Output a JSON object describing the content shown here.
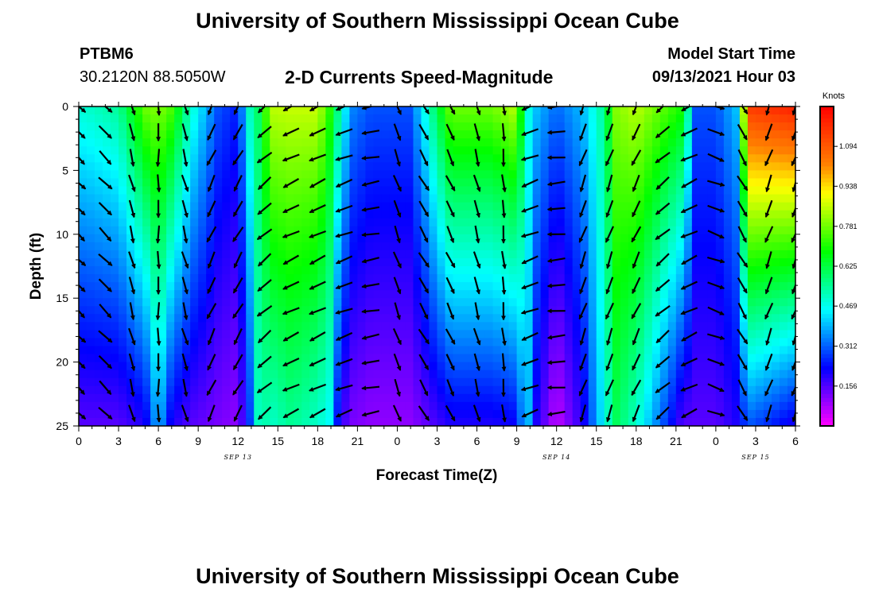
{
  "header": {
    "title": "University of Southern Mississippi Ocean Cube",
    "station": "PTBM6",
    "coords": "30.2120N  88.5050W",
    "subtitle": "2-D Currents Speed-Magnitude",
    "model_start_label": "Model Start Time",
    "model_start_value": "09/13/2021 Hour 03"
  },
  "footer": {
    "title": "University of Southern Mississippi Ocean Cube"
  },
  "chart_data": {
    "type": "heatmap",
    "xlabel": "Forecast Time(Z)",
    "ylabel": "Depth (ft)",
    "x_ticks": [
      {
        "hour": 0,
        "label": "0"
      },
      {
        "hour": 3,
        "label": "3"
      },
      {
        "hour": 6,
        "label": "6"
      },
      {
        "hour": 9,
        "label": "9"
      },
      {
        "hour": 12,
        "label": "12"
      },
      {
        "hour": 15,
        "label": "15"
      },
      {
        "hour": 18,
        "label": "18"
      },
      {
        "hour": 21,
        "label": "21"
      },
      {
        "hour": 24,
        "label": "0"
      },
      {
        "hour": 27,
        "label": "3"
      },
      {
        "hour": 30,
        "label": "6"
      },
      {
        "hour": 33,
        "label": "9"
      },
      {
        "hour": 36,
        "label": "12"
      },
      {
        "hour": 39,
        "label": "15"
      },
      {
        "hour": 42,
        "label": "18"
      },
      {
        "hour": 45,
        "label": "21"
      },
      {
        "hour": 48,
        "label": "0"
      },
      {
        "hour": 51,
        "label": "3"
      },
      {
        "hour": 54,
        "label": "6"
      }
    ],
    "date_labels": [
      {
        "hour": 12,
        "label": "SEP 13"
      },
      {
        "hour": 36,
        "label": "SEP 14"
      },
      {
        "hour": 51,
        "label": "SEP 15"
      }
    ],
    "y_ticks": [
      0,
      5,
      10,
      15,
      20,
      25
    ],
    "xlim": [
      0,
      54
    ],
    "ylim": [
      25,
      0
    ],
    "colorbar": {
      "unit": "Knots",
      "range": [
        0,
        1.25
      ],
      "ticks": [
        "0.156",
        "0.312",
        "0.469",
        "0.625",
        "0.781",
        "0.938",
        "1.094"
      ],
      "colors": [
        "#ff00ff",
        "#8000ff",
        "#0000ff",
        "#0080ff",
        "#00ffff",
        "#00ff80",
        "#00ff00",
        "#80ff00",
        "#ffff00",
        "#ff8000",
        "#ff4000",
        "#ff0000"
      ]
    },
    "speed_profile": {
      "hours": [
        0,
        0.5,
        3,
        5,
        6,
        7,
        8.5,
        10.5,
        12,
        13,
        13.6,
        14.5,
        16,
        18,
        19,
        19.6,
        20.5,
        22,
        25,
        28,
        31,
        33,
        33.7,
        34.5,
        36,
        38,
        39.5,
        40.5,
        42,
        45.5,
        46.5,
        48,
        49.5,
        50.5,
        54
      ],
      "surface": [
        0.5,
        0.5,
        0.55,
        0.78,
        0.8,
        0.75,
        0.5,
        0.3,
        0.25,
        0.55,
        0.6,
        0.85,
        0.86,
        0.86,
        0.7,
        0.55,
        0.35,
        0.3,
        0.3,
        0.78,
        0.78,
        0.85,
        0.5,
        0.4,
        0.32,
        0.4,
        0.55,
        0.8,
        0.85,
        0.7,
        0.3,
        0.3,
        0.4,
        1.15,
        1.2
      ],
      "bottom": [
        0.15,
        0.15,
        0.15,
        0.2,
        0.4,
        0.2,
        0.15,
        0.12,
        0.1,
        0.3,
        0.55,
        0.5,
        0.55,
        0.5,
        0.45,
        0.2,
        0.12,
        0.1,
        0.1,
        0.2,
        0.2,
        0.22,
        0.45,
        0.2,
        0.05,
        0.2,
        0.45,
        0.6,
        0.5,
        0.15,
        0.15,
        0.15,
        0.2,
        0.3,
        0.2
      ]
    },
    "vector_columns_hours": [
      0,
      2,
      4,
      6,
      8,
      10,
      12,
      14,
      16,
      18,
      20,
      22,
      24,
      26,
      28,
      30,
      32,
      34,
      36,
      38,
      40,
      42,
      44,
      46,
      48,
      50,
      52,
      54
    ],
    "vector_rows_depth": [
      0,
      2,
      4,
      6,
      8,
      10,
      12,
      14,
      16,
      18,
      20,
      22,
      24
    ],
    "direction_profile_deg": [
      135,
      135,
      165,
      180,
      165,
      205,
      210,
      230,
      245,
      245,
      250,
      260,
      160,
      150,
      155,
      165,
      175,
      250,
      265,
      200,
      200,
      205,
      230,
      245,
      110,
      150,
      200,
      200
    ]
  }
}
